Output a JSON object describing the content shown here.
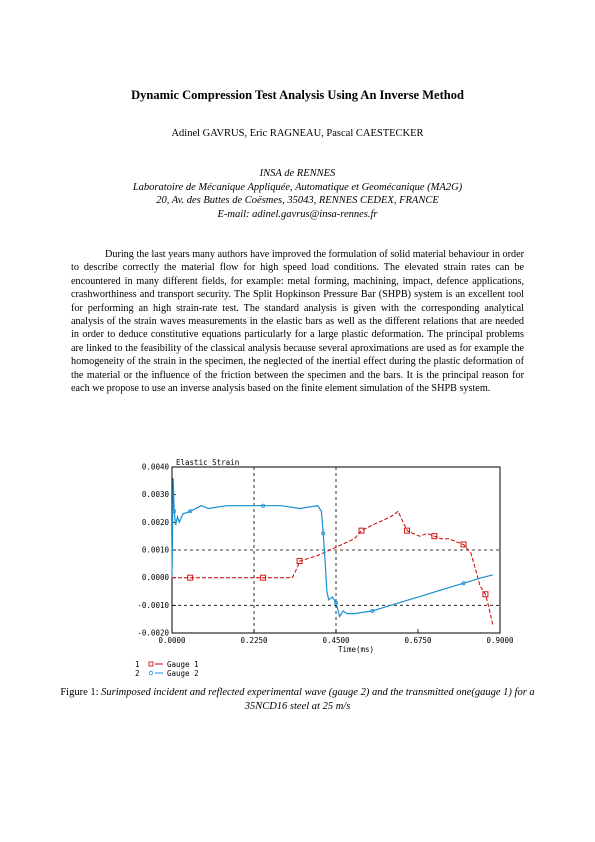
{
  "paper": {
    "title": "Dynamic Compression Test Analysis Using An Inverse Method",
    "authors": "Adinel GAVRUS, Eric RAGNEAU, Pascal CAESTECKER",
    "affiliation": [
      "INSA de RENNES",
      "Laboratoire de Mécanique Appliquée, Automatique et Geomécanique (MA2G)",
      "20, Av. des Buttes de Coësmes, 35043, RENNES CEDEX, FRANCE",
      "E-mail: adinel.gavrus@insa-rennes.fr"
    ],
    "abstract": "During the last years many authors have improved the formulation of solid material behaviour in order to describe correctly the material flow for high speed load conditions. The elevated strain rates can be encountered in many different fields, for example: metal forming, machining, impact, defence applications, crashworthiness and transport security. The Split Hopkinson Pressure Bar (SHPB) system is an excellent tool for performing an high strain-rate test. The standard analysis is given with the corresponding analytical analysis of the strain waves measurements in the elastic bars as well as the different relations that are needed in order to deduce constitutive equations particularly for a large plastic deformation. The principal problems are linked to the feasibility of the classical analysis because several aproximations are used as for example the homogeneity of the strain in the specimen, the neglected of the inertial effect during the plastic deformation of the material or the influence of the friction between the specimen and the bars. It is the principal reason for each we propose to use an inverse analysis based on the finite element simulation of the SHPB system.",
    "caption_prefix": "Figure 1: ",
    "caption_text": "Surimposed incident and  reflected experimental wave (gauge 2) and the transmitted one(gauge 1) for a 35NCD16 steel at 25 m/s"
  },
  "chart_data": {
    "type": "line",
    "title": "Elastic Strain",
    "xlabel": "Time(ms)",
    "ylabel": "",
    "xlim": [
      0,
      0.9
    ],
    "ylim": [
      -0.002,
      0.004
    ],
    "x_ticks": [
      "0.0000",
      "0.2250",
      "0.4500",
      "0.6750",
      "0.9000"
    ],
    "y_ticks": [
      "0.0040",
      "0.0030",
      "0.0020",
      "0.0010",
      "0.0000",
      "-0.0010",
      "-0.0020"
    ],
    "x_tick_values": [
      0,
      0.225,
      0.45,
      0.675,
      0.9
    ],
    "y_tick_values": [
      0.004,
      0.003,
      0.002,
      0.001,
      0,
      -0.001,
      -0.002
    ],
    "grid_x": [
      0.225,
      0.45
    ],
    "grid_y": [
      0.001,
      -0.001
    ],
    "legend_placement": "bottom-left",
    "colors": {
      "gauge1": "#cc0000",
      "gauge2": "#1a8fd0"
    },
    "series": [
      {
        "name": "Gauge 1",
        "marker": "square",
        "x": [
          0.0,
          0.05,
          0.1,
          0.15,
          0.2,
          0.25,
          0.3,
          0.33,
          0.345,
          0.35,
          0.4,
          0.45,
          0.5,
          0.52,
          0.55,
          0.6,
          0.62,
          0.645,
          0.66,
          0.68,
          0.7,
          0.72,
          0.74,
          0.76,
          0.78,
          0.8,
          0.82,
          0.835,
          0.845,
          0.86,
          0.87,
          0.88
        ],
        "y": [
          0.0,
          0.0,
          0.0,
          0.0,
          0.0,
          0.0,
          0.0,
          0.0,
          0.0004,
          0.0006,
          0.0008,
          0.0011,
          0.0014,
          0.0017,
          0.0019,
          0.0022,
          0.0024,
          0.0017,
          0.0016,
          0.0015,
          0.0016,
          0.0015,
          0.0014,
          0.0014,
          0.0013,
          0.0012,
          0.0009,
          0.0002,
          -0.0003,
          -0.0006,
          -0.0011,
          -0.0017
        ]
      },
      {
        "name": "Gauge 2",
        "marker": "circle",
        "x": [
          0.0,
          0.003,
          0.006,
          0.01,
          0.015,
          0.02,
          0.03,
          0.05,
          0.08,
          0.1,
          0.15,
          0.2,
          0.25,
          0.3,
          0.35,
          0.4,
          0.41,
          0.415,
          0.42,
          0.425,
          0.43,
          0.44,
          0.45,
          0.46,
          0.47,
          0.48,
          0.5,
          0.55,
          0.6,
          0.65,
          0.7,
          0.75,
          0.8,
          0.85,
          0.88
        ],
        "y": [
          0.0,
          0.0036,
          0.0024,
          0.0019,
          0.0022,
          0.002,
          0.0023,
          0.0024,
          0.0026,
          0.0025,
          0.0026,
          0.0026,
          0.0026,
          0.0026,
          0.0025,
          0.0026,
          0.0024,
          0.0016,
          0.0006,
          -0.0005,
          -0.0008,
          -0.0007,
          -0.0009,
          -0.0014,
          -0.0012,
          -0.0013,
          -0.0013,
          -0.0012,
          -0.001,
          -0.0008,
          -0.0006,
          -0.0004,
          -0.0002,
          0.0,
          0.0001
        ]
      }
    ]
  }
}
